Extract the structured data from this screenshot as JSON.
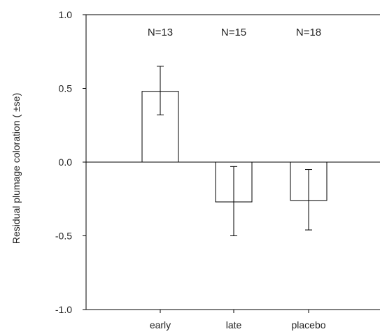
{
  "chart_data": {
    "type": "bar",
    "categories": [
      "early",
      "late",
      "placebo"
    ],
    "values": [
      0.48,
      -0.27,
      -0.26
    ],
    "error_low": [
      0.32,
      -0.5,
      -0.46
    ],
    "error_high": [
      0.65,
      -0.03,
      -0.05
    ],
    "annotations": [
      "N=13",
      "N=15",
      "N=18"
    ],
    "ylabel": "Residual plumage coloration ( ±se)",
    "xlabel": "",
    "title": "",
    "ylim": [
      -1.0,
      1.0
    ],
    "yticks": [
      1.0,
      0.5,
      0.0,
      -0.5,
      -1.0
    ],
    "ytick_labels": [
      "1.0",
      "0.5",
      "0.0",
      "-0.5",
      "-1.0"
    ],
    "grid": false,
    "legend": "none",
    "bar_fill": "#ffffff",
    "line_color": "#000000"
  }
}
